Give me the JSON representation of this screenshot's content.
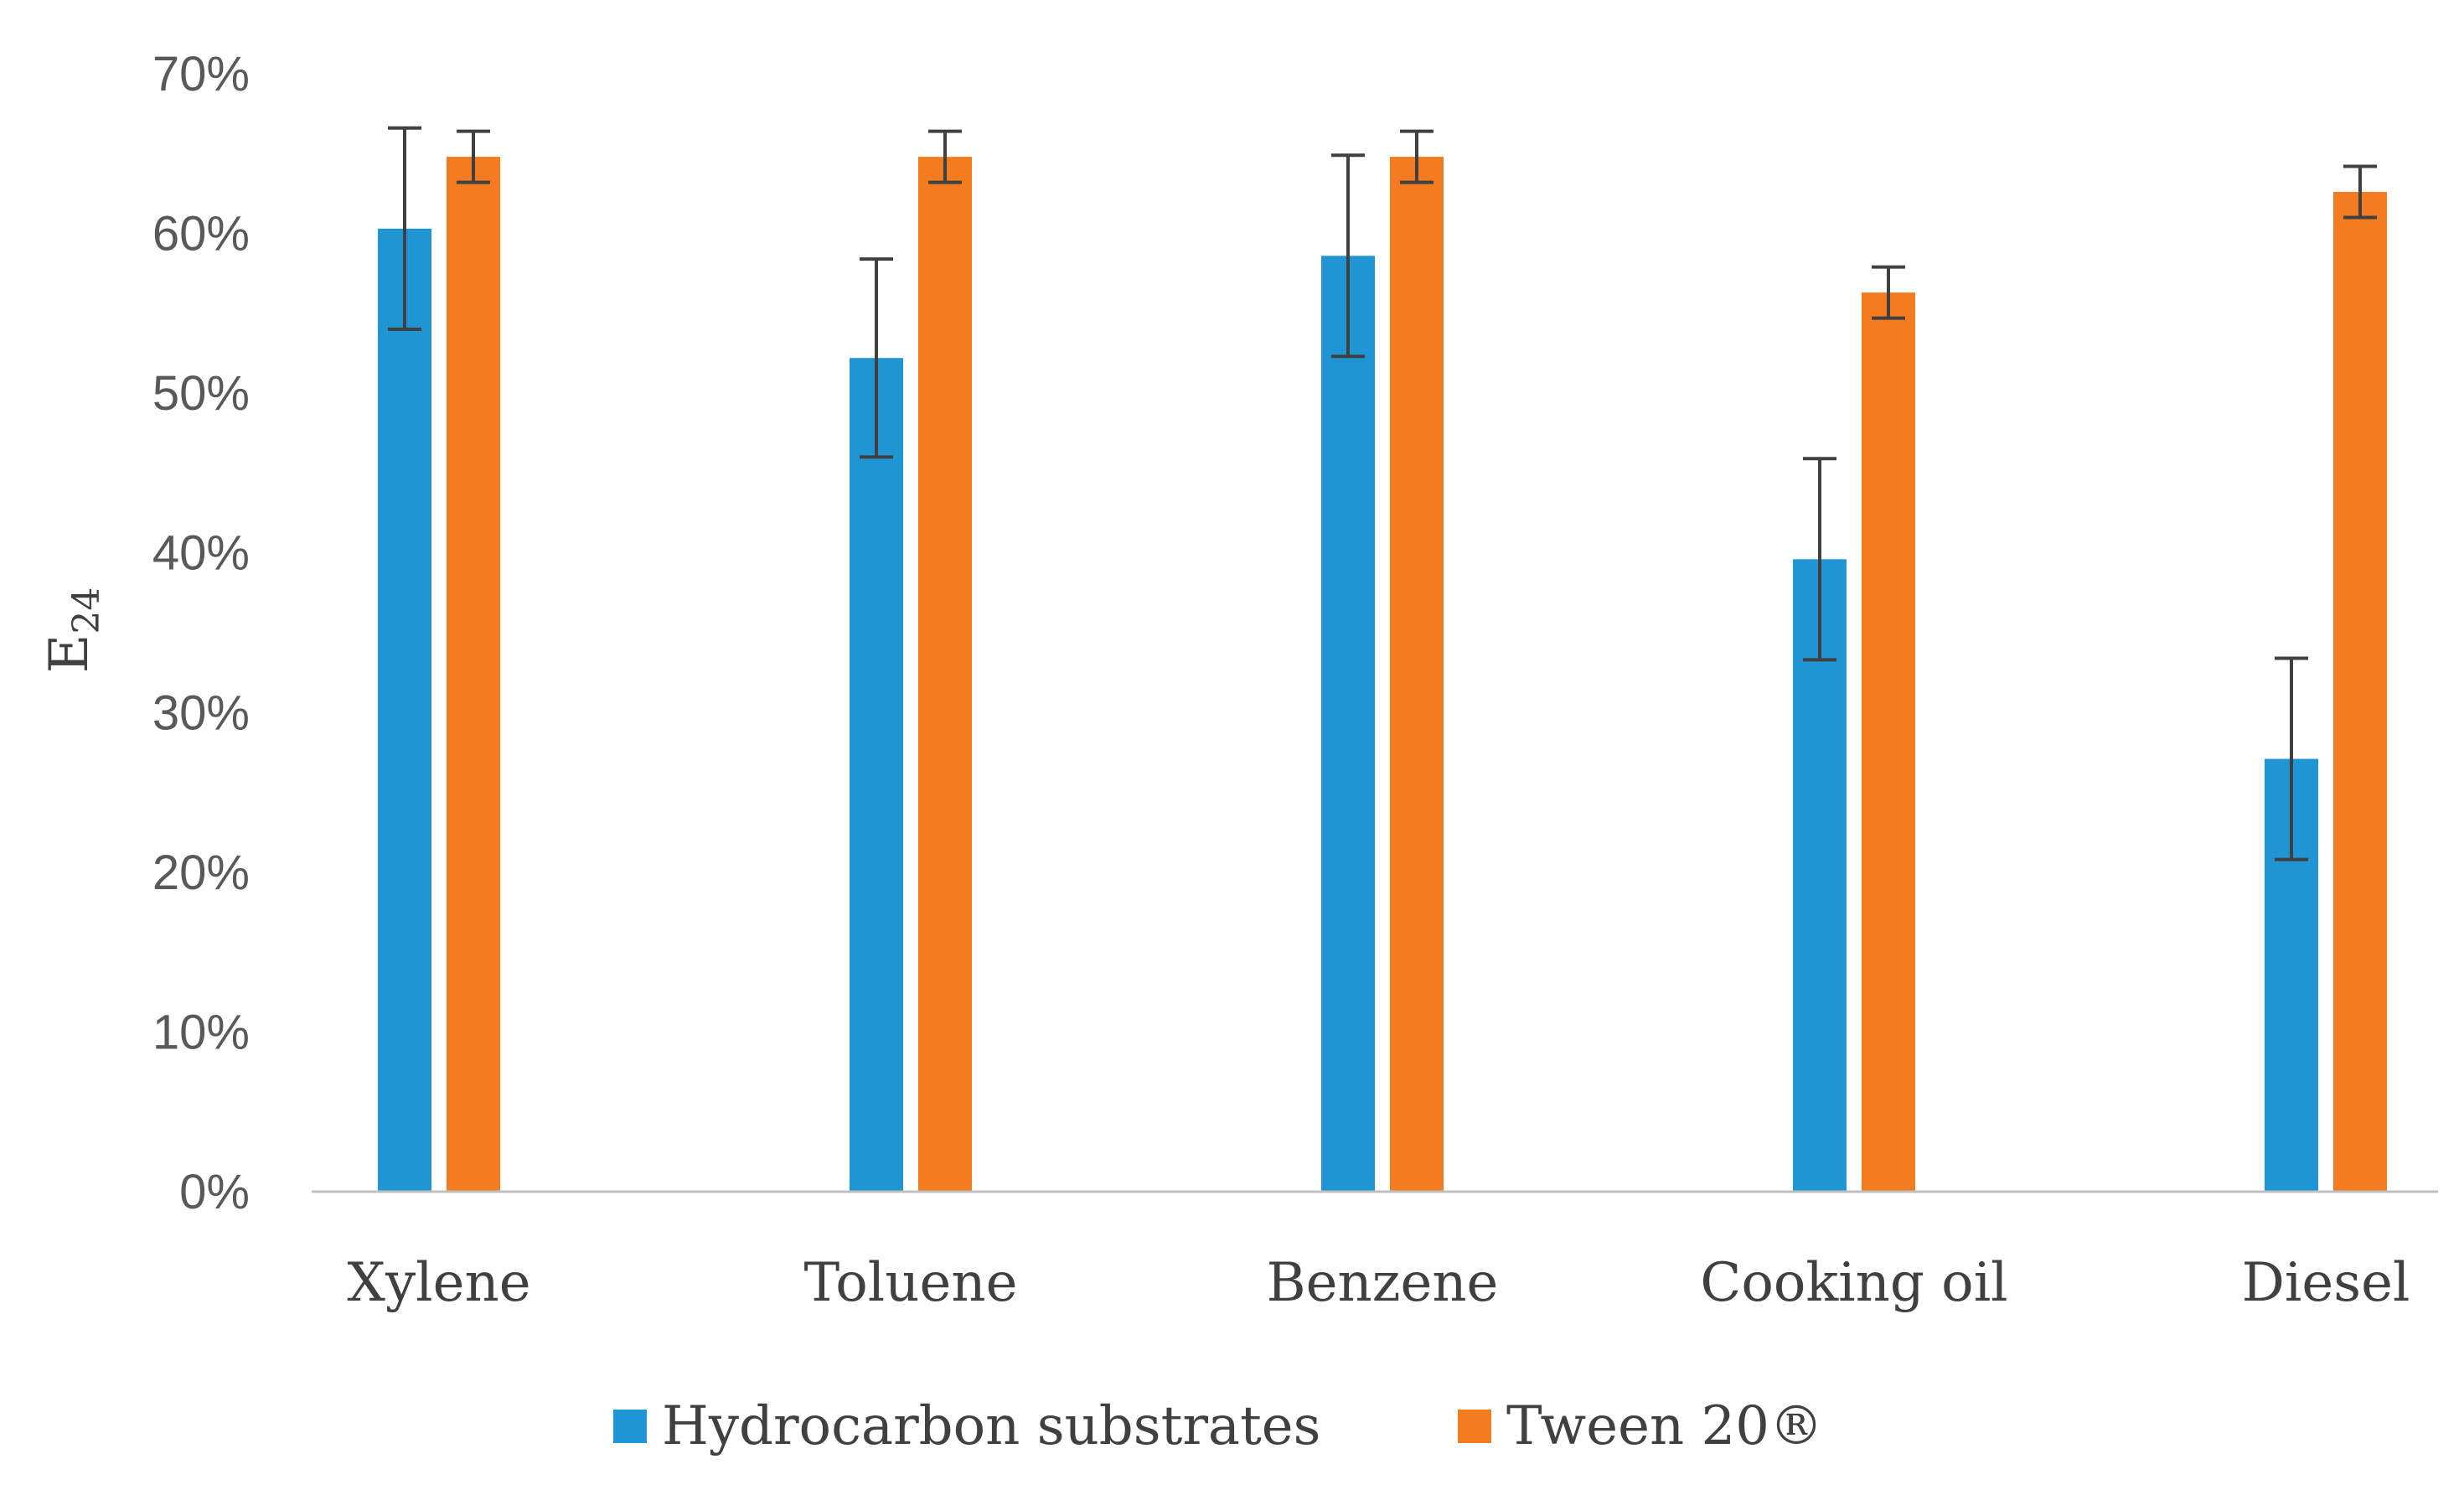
{
  "chart_data": {
    "type": "bar",
    "title": "",
    "xlabel": "",
    "ylabel": "E",
    "ylabel_subscript": "24",
    "categories": [
      "Xylene",
      "Toluene",
      "Benzene",
      "Cooking oil",
      "Diesel"
    ],
    "series": [
      {
        "name": "Hydrocarbon substrates",
        "color": "#1F96D3",
        "values": [
          60.3,
          52.2,
          58.6,
          39.6,
          27.1
        ],
        "errors": [
          6.3,
          6.2,
          6.3,
          6.3,
          6.3
        ]
      },
      {
        "name": "Tween 20®",
        "color": "#F47C20",
        "values": [
          64.8,
          64.8,
          64.8,
          56.3,
          62.6
        ],
        "errors": [
          1.6,
          1.6,
          1.6,
          1.6,
          1.6
        ]
      }
    ],
    "ylim": [
      0,
      70
    ],
    "yticks": [
      0,
      10,
      20,
      30,
      40,
      50,
      60,
      70
    ],
    "ytick_labels": [
      "0%",
      "10%",
      "20%",
      "30%",
      "40%",
      "50%",
      "60%",
      "70%"
    ],
    "grid": false,
    "legend_position": "bottom-center",
    "error_bar_color": "#404040",
    "axis_color": "#BFBFBF"
  }
}
